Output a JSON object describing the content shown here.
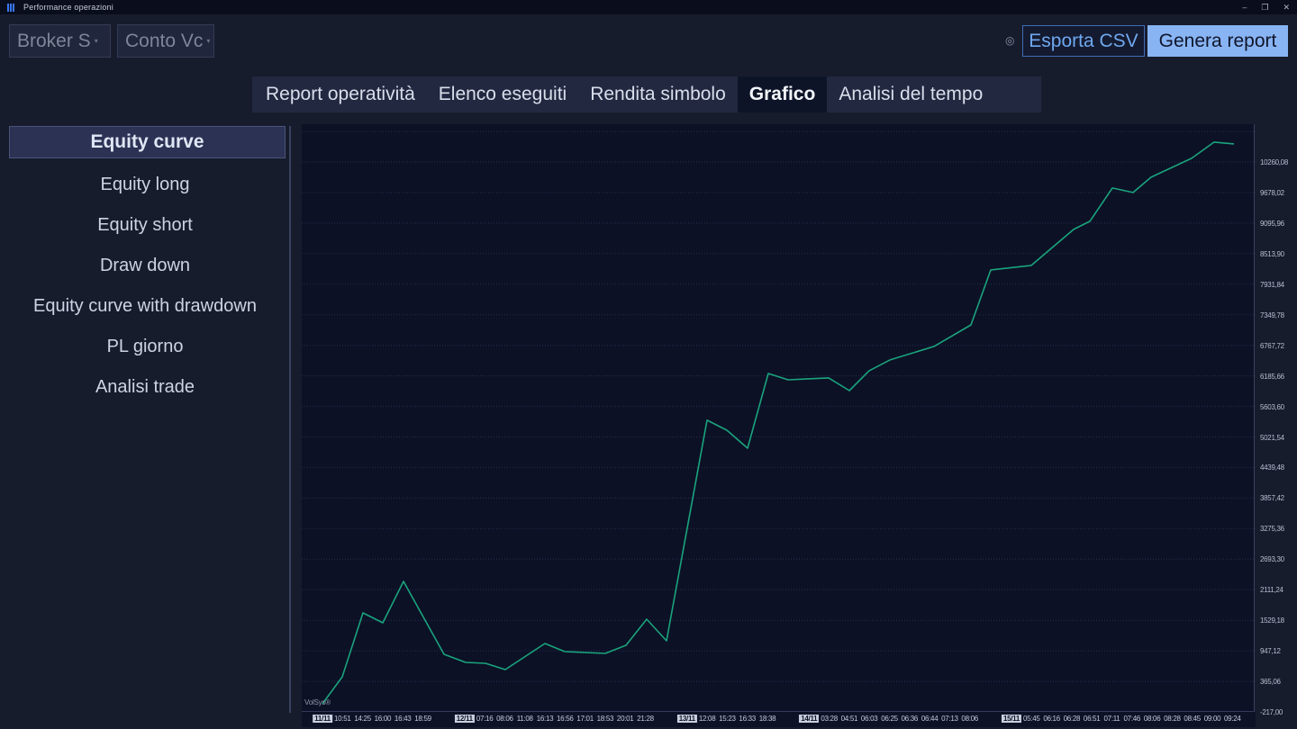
{
  "window": {
    "title": "Performance operazioni",
    "controls": {
      "minimize": "–",
      "restore": "❐",
      "close": "✕"
    }
  },
  "toolbar": {
    "broker_label": "Broker S",
    "conto_label": "Conto Vc",
    "settings_icon": "◎",
    "export_csv": "Esporta CSV",
    "generate_report": "Genera report"
  },
  "tabs": [
    {
      "label": "Report operatività",
      "active": false
    },
    {
      "label": "Elenco eseguiti",
      "active": false
    },
    {
      "label": "Rendita simbolo",
      "active": false
    },
    {
      "label": "Grafico",
      "active": true
    },
    {
      "label": "Analisi del tempo",
      "active": false
    }
  ],
  "sidebar": {
    "items": [
      {
        "label": "Equity curve",
        "selected": true
      },
      {
        "label": "Equity long",
        "selected": false
      },
      {
        "label": "Equity short",
        "selected": false
      },
      {
        "label": "Draw down",
        "selected": false
      },
      {
        "label": "Equity curve with drawdown",
        "selected": false
      },
      {
        "label": "PL giorno",
        "selected": false
      },
      {
        "label": "Analisi trade",
        "selected": false
      }
    ]
  },
  "chart_data": {
    "type": "line",
    "title": "Equity curve",
    "watermark": "VolSys®",
    "line_color": "#1aa47d",
    "grid_color": "#272f4f",
    "ylim": [
      -217.0,
      10842.14
    ],
    "y_ticks": {
      "labels": [
        "10260,08",
        "9678,02",
        "9095,96",
        "8513,90",
        "7931,84",
        "7349,78",
        "6767,72",
        "6185,66",
        "5603,60",
        "5021,54",
        "4439,48",
        "3857,42",
        "3275,36",
        "2693,30",
        "2111,24",
        "1529,18",
        "947,12",
        "365,06",
        "-217,00"
      ],
      "values": [
        10260.08,
        9678.02,
        9095.96,
        8513.9,
        7931.84,
        7349.78,
        6767.72,
        6185.66,
        5603.6,
        5021.54,
        4439.48,
        3857.42,
        3275.36,
        2693.3,
        2111.24,
        1529.18,
        947.12,
        365.06,
        -217.0
      ],
      "grid_extra_value": 10842.14
    },
    "x_ticks": [
      {
        "t": "11/11",
        "day": true
      },
      {
        "t": "10:51"
      },
      {
        "t": "14:25"
      },
      {
        "t": "16:00"
      },
      {
        "t": "16:43"
      },
      {
        "t": "18:59"
      },
      {
        "t": "12/11",
        "day": true
      },
      {
        "t": "07:16"
      },
      {
        "t": "08:06"
      },
      {
        "t": "11:08"
      },
      {
        "t": "16:13"
      },
      {
        "t": "16:56"
      },
      {
        "t": "17:01"
      },
      {
        "t": "18:53"
      },
      {
        "t": "20:01"
      },
      {
        "t": "21:28"
      },
      {
        "t": "13/11",
        "day": true
      },
      {
        "t": "12:08"
      },
      {
        "t": "15:23"
      },
      {
        "t": "16:33"
      },
      {
        "t": "18:38"
      },
      {
        "t": "14/11",
        "day": true
      },
      {
        "t": "03:28"
      },
      {
        "t": "04:51"
      },
      {
        "t": "06:03"
      },
      {
        "t": "06:25"
      },
      {
        "t": "06:36"
      },
      {
        "t": "06:44"
      },
      {
        "t": "07:13"
      },
      {
        "t": "08:06"
      },
      {
        "t": "15/11",
        "day": true
      },
      {
        "t": "05:45"
      },
      {
        "t": "06:16"
      },
      {
        "t": "06:28"
      },
      {
        "t": "06:51"
      },
      {
        "t": "07:11"
      },
      {
        "t": "07:46"
      },
      {
        "t": "08:06"
      },
      {
        "t": "08:28"
      },
      {
        "t": "08:45"
      },
      {
        "t": "09:00"
      },
      {
        "t": "09:24"
      }
    ],
    "points": [
      {
        "x": 0.0217,
        "value": -63
      },
      {
        "x": 0.0425,
        "value": 452
      },
      {
        "x": 0.0643,
        "value": 1670
      },
      {
        "x": 0.0851,
        "value": 1481
      },
      {
        "x": 0.1068,
        "value": 2270
      },
      {
        "x": 0.1493,
        "value": 881
      },
      {
        "x": 0.172,
        "value": 726
      },
      {
        "x": 0.1928,
        "value": 709
      },
      {
        "x": 0.2136,
        "value": 589
      },
      {
        "x": 0.2552,
        "value": 1086
      },
      {
        "x": 0.276,
        "value": 932
      },
      {
        "x": 0.3185,
        "value": 898
      },
      {
        "x": 0.3403,
        "value": 1052
      },
      {
        "x": 0.362,
        "value": 1549
      },
      {
        "x": 0.3828,
        "value": 1138
      },
      {
        "x": 0.4253,
        "value": 5340
      },
      {
        "x": 0.4461,
        "value": 5151
      },
      {
        "x": 0.4679,
        "value": 4808
      },
      {
        "x": 0.4896,
        "value": 6231
      },
      {
        "x": 0.5104,
        "value": 6111
      },
      {
        "x": 0.5529,
        "value": 6146
      },
      {
        "x": 0.5747,
        "value": 5905
      },
      {
        "x": 0.5955,
        "value": 6283
      },
      {
        "x": 0.6173,
        "value": 6489
      },
      {
        "x": 0.6636,
        "value": 6746
      },
      {
        "x": 0.7023,
        "value": 7157
      },
      {
        "x": 0.7231,
        "value": 8204
      },
      {
        "x": 0.7656,
        "value": 8290
      },
      {
        "x": 0.81,
        "value": 8976
      },
      {
        "x": 0.827,
        "value": 9130
      },
      {
        "x": 0.8507,
        "value": 9765
      },
      {
        "x": 0.8724,
        "value": 9679
      },
      {
        "x": 0.8913,
        "value": 9971
      },
      {
        "x": 0.9338,
        "value": 10331
      },
      {
        "x": 0.9575,
        "value": 10639
      },
      {
        "x": 0.9783,
        "value": 10605
      }
    ]
  }
}
